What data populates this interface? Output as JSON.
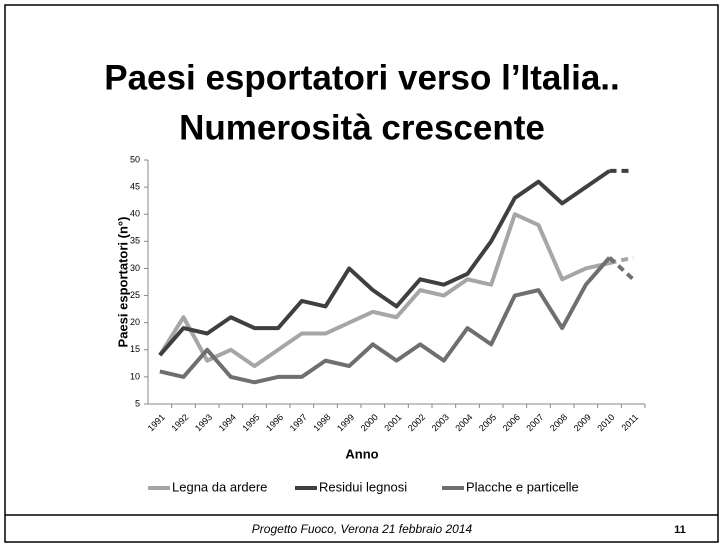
{
  "title_lines": [
    "Paesi esportatori verso l’Italia..",
    "Numerosità crescente"
  ],
  "footer": {
    "text": "Progetto Fuoco, Verona 21 febbraio 2014",
    "page": "11"
  },
  "chart_data": {
    "type": "line",
    "categories": [
      "1991",
      "1992",
      "1993",
      "1994",
      "1995",
      "1996",
      "1997",
      "1998",
      "1999",
      "2000",
      "2001",
      "2002",
      "2003",
      "2004",
      "2005",
      "2006",
      "2007",
      "2008",
      "2009",
      "2010",
      "2011"
    ],
    "series": [
      {
        "name": "Legna da ardere",
        "color": "#a6a6a6",
        "values": [
          14,
          21,
          13,
          15,
          12,
          15,
          18,
          18,
          20,
          22,
          21,
          26,
          25,
          28,
          27,
          40,
          38,
          28,
          30,
          31,
          32
        ]
      },
      {
        "name": "Residui legnosi",
        "color": "#3f3f3f",
        "values": [
          14,
          19,
          18,
          21,
          19,
          19,
          24,
          23,
          30,
          26,
          23,
          28,
          27,
          29,
          35,
          43,
          46,
          42,
          45,
          48,
          48
        ]
      },
      {
        "name": "Placche e particelle",
        "color": "#6f6f6f",
        "values": [
          11,
          10,
          15,
          10,
          9,
          10,
          10,
          13,
          12,
          16,
          13,
          16,
          13,
          19,
          16,
          25,
          26,
          19,
          27,
          32,
          28
        ]
      }
    ],
    "x_label": "Anno",
    "y_label": "Paesi esportatori (n°)",
    "ylim": [
      5,
      50
    ],
    "yticks": [
      5,
      10,
      15,
      20,
      25,
      30,
      35,
      40,
      45,
      50
    ],
    "grid": false,
    "legend": "bottom",
    "last_segment_dashed": true
  }
}
